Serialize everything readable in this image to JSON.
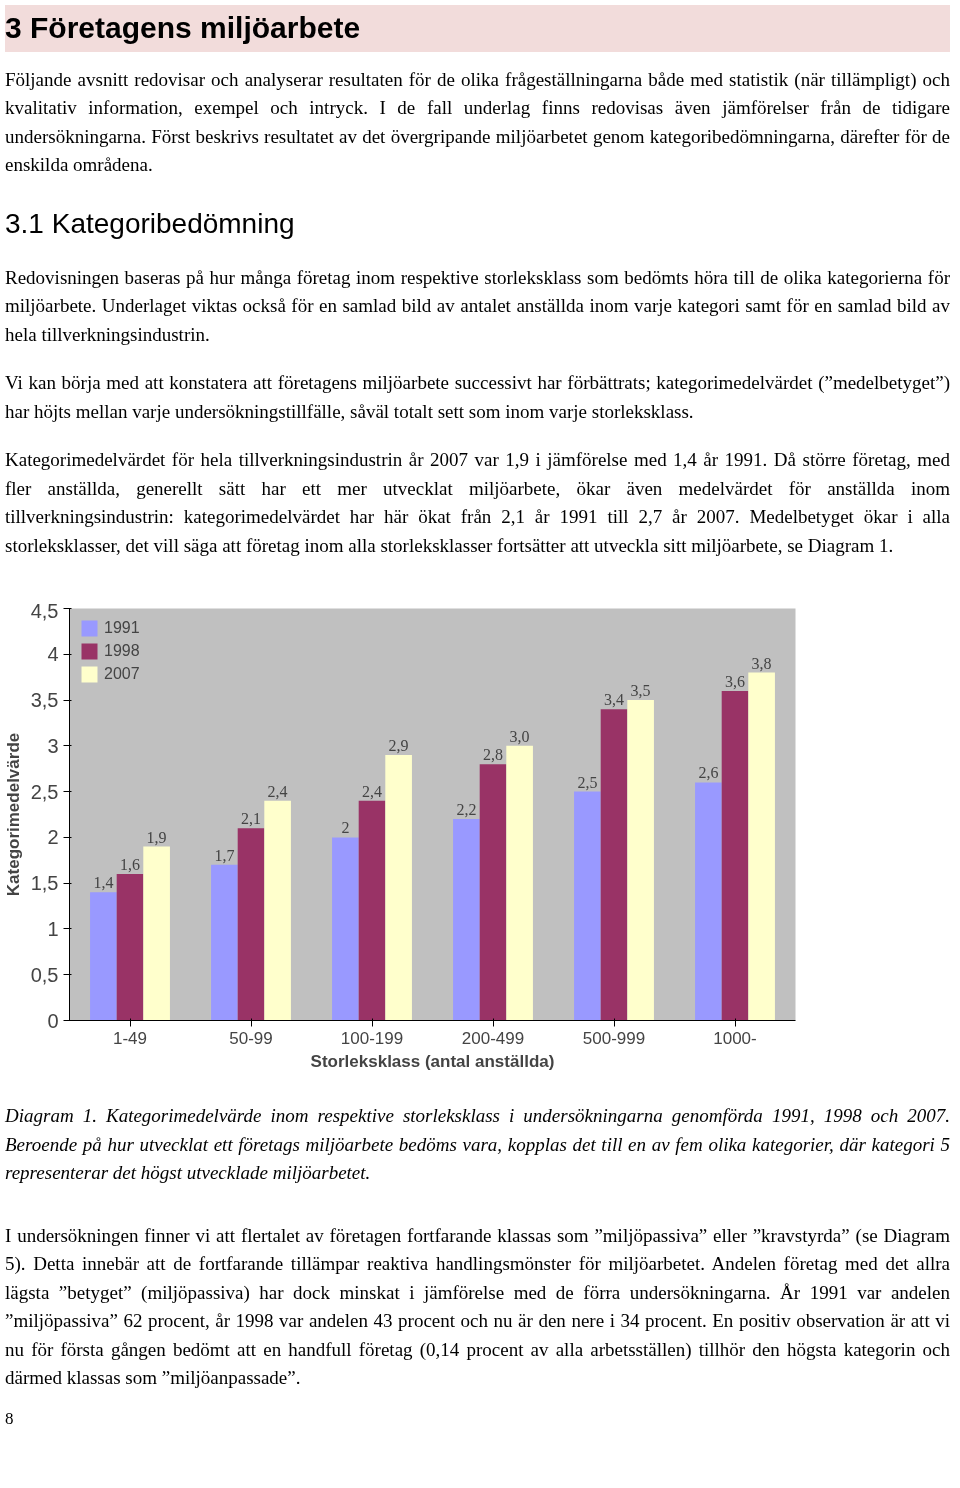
{
  "chart_data": {
    "type": "bar",
    "title": "3 Företagens miljöarbete",
    "subtitle": "3.1 Kategoribedömning",
    "annotations": [
      "Följande avsnitt redovisar och analyserar resultaten för de olika frågeställningarna både med statistik (när tillämpligt) och kvalitativ information, exempel och intryck. I de fall underlag finns redovisas även jämförelser från de tidigare undersökningarna. Först beskrivs resultatet av det övergripande miljöarbetet genom kategoribedömningarna, därefter för de enskilda områdena.",
      "Redovisningen baseras på hur många företag inom respektive storleksklass som bedömts höra till de olika kategorierna för miljöarbete. Underlaget viktas också för en samlad bild av antalet anställda inom varje kategori samt för en samlad bild av hela tillverkningsindustrin.",
      "Vi kan börja med att konstatera att företagens miljöarbete successivt har förbättrats; kategorimedelvärdet (”medelbetyget”) har höjts mellan varje undersökningstillfälle, såväl totalt sett som inom varje storleksklass.",
      "Kategorimedelvärdet för hela tillverkningsindustrin år 2007 var 1,9 i jämförelse med 1,4 år 1991. Då större företag, med fler anställda, generellt sätt har ett mer utvecklat miljöarbete, ökar även medelvärdet för anställda inom tillverkningsindustrin: kategorimedelvärdet har här ökat från 2,1 år 1991 till 2,7 år 2007. Medelbetyget ökar i alla storleksklasser, det vill säga att företag inom alla storleksklasser fortsätter att utveckla sitt miljöarbete, se Diagram 1.",
      "Diagram 1. Kategorimedelvärde inom respektive storleksklass i undersökningarna genomförda 1991, 1998 och 2007. Beroende på hur utvecklat ett företags miljöarbete bedöms vara, kopplas det till en av fem olika kategorier, där kategori 5 representerar det högst utvecklade miljöarbetet.",
      "I undersökningen finner vi att flertalet av företagen fortfarande klassas som ”miljöpassiva” eller ”kravstyrda” (se Diagram 5). Detta innebär att de fortfarande tillämpar reaktiva handlingsmönster för miljöarbetet. Andelen företag med det allra lägsta ”betyget” (miljöpassiva) har dock minskat i jämförelse med de förra undersökningarna. År 1991 var andelen ”miljöpassiva” 62 procent, år 1998 var andelen 43 procent och nu är den nere i 34 procent. En positiv observation är att vi nu för första gången bedömt att en handfull företag (0,14 procent av alla arbetsställen) tillhör den högsta kategorin och därmed klassas som ”miljöanpassade”.",
      "8"
    ],
    "xlabel": "Storleksklass (antal anställda)",
    "ylabel": "Kategorimedelvärde",
    "categories": [
      "1-49",
      "50-99",
      "100-199",
      "200-499",
      "500-999",
      "1000-"
    ],
    "series": [
      {
        "name": "1991",
        "color": "#9999ff",
        "values": [
          1.4,
          1.7,
          2,
          2.2,
          2.5,
          2.6
        ],
        "value_labels": [
          "1,4",
          "1,7",
          "2",
          "2,2",
          "2,5",
          "2,6"
        ]
      },
      {
        "name": "1998",
        "color": "#993366",
        "values": [
          1.6,
          2.1,
          2.4,
          2.8,
          3.4,
          3.6
        ],
        "value_labels": [
          "1,6",
          "2,1",
          "2,4",
          "2,8",
          "3,4",
          "3,6"
        ]
      },
      {
        "name": "2007",
        "color": "#ffffcc",
        "values": [
          1.9,
          2.4,
          2.9,
          3.0,
          3.5,
          3.8
        ],
        "value_labels": [
          "1,9",
          "2,4",
          "2,9",
          "3,0",
          "3,5",
          "3,8"
        ]
      }
    ],
    "ylim": [
      0,
      4.5
    ],
    "yticks": [
      0,
      {
        "value": 0.5,
        "label": "0,5"
      },
      1,
      {
        "value": 1.5,
        "label": "1,5"
      },
      2,
      {
        "value": 2.5,
        "label": "2,5"
      },
      3,
      {
        "value": 3.5,
        "label": "3,5"
      },
      4,
      {
        "value": 4.5,
        "label": "4,5"
      }
    ],
    "grid": false,
    "legend": "top left"
  }
}
